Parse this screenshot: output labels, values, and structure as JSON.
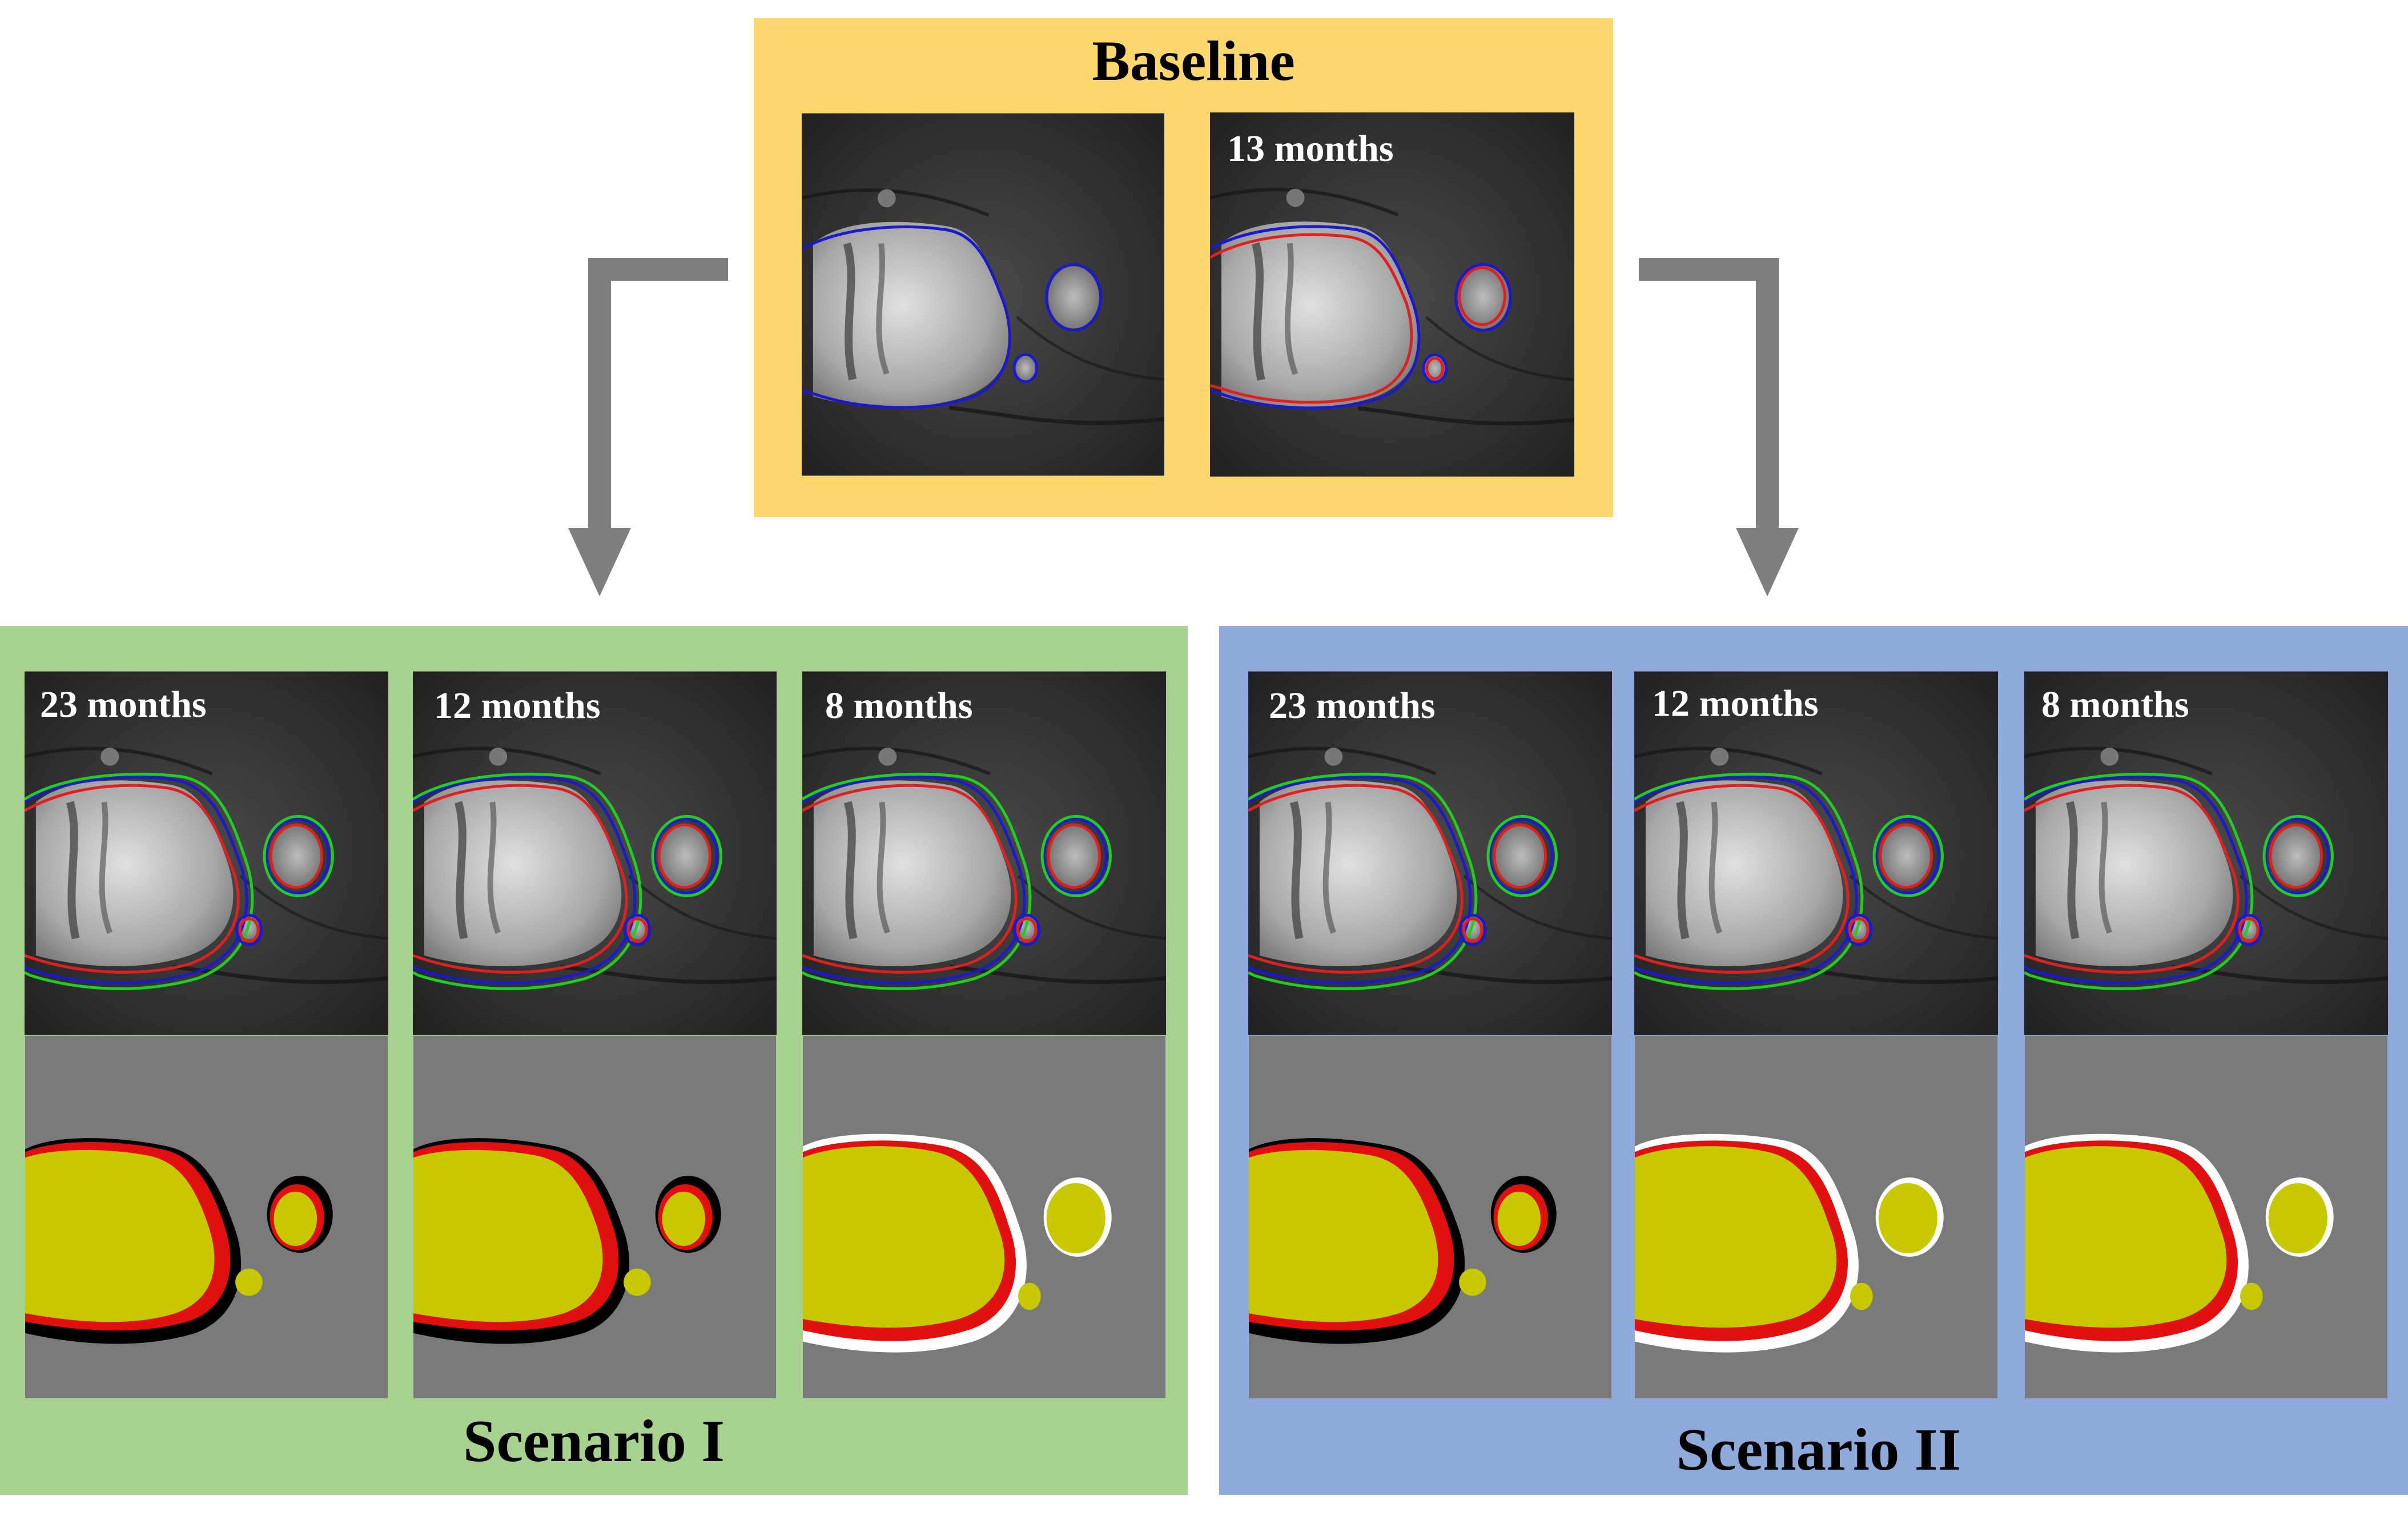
{
  "baseline": {
    "title": "Baseline",
    "panels": [
      {
        "label": ""
      },
      {
        "label": "13 months"
      }
    ]
  },
  "scenario1": {
    "title": "Scenario I",
    "panels": [
      {
        "label": "23 months"
      },
      {
        "label": "12 months"
      },
      {
        "label": "8 months"
      }
    ]
  },
  "scenario2": {
    "title": "Scenario II",
    "panels": [
      {
        "label": "23 months"
      },
      {
        "label": "12 months"
      },
      {
        "label": "8 months"
      }
    ]
  },
  "colors": {
    "baseline_box": "#fdd76e",
    "scenario1_box": "#a7d18f",
    "scenario2_box": "#8eaadb",
    "arrow": "#7f7f7f",
    "map_background": "#7a7a7a",
    "overlap": "#c8c800",
    "outline_blue": "#1a1acc",
    "outline_red": "#e02020",
    "outline_green": "#22cc22"
  }
}
